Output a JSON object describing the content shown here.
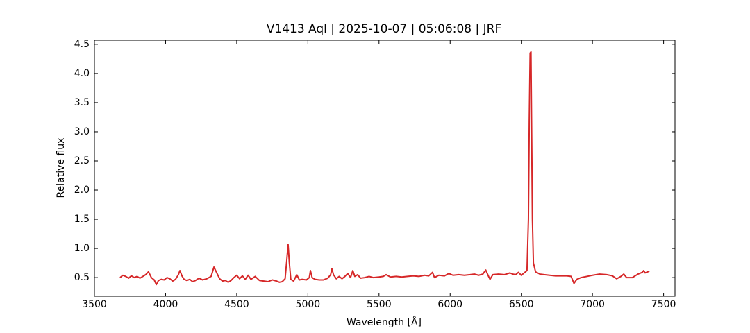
{
  "chart_data": {
    "type": "line",
    "title": "V1413 Aql | 2025-10-07 | 05:06:08 | JRF",
    "x_label": "Wavelength [Å]",
    "y_label": "Relative flux",
    "color": "#d62728",
    "x": [
      3680,
      3700,
      3720,
      3740,
      3760,
      3780,
      3800,
      3820,
      3840,
      3860,
      3880,
      3900,
      3920,
      3935,
      3950,
      3970,
      3990,
      4010,
      4030,
      4050,
      4070,
      4090,
      4101,
      4115,
      4130,
      4150,
      4170,
      4190,
      4210,
      4235,
      4260,
      4290,
      4320,
      4340,
      4360,
      4380,
      4400,
      4420,
      4440,
      4460,
      4480,
      4500,
      4520,
      4540,
      4560,
      4580,
      4600,
      4630,
      4660,
      4690,
      4720,
      4750,
      4780,
      4800,
      4820,
      4840,
      4852,
      4861,
      4870,
      4880,
      4900,
      4922,
      4940,
      4960,
      4990,
      5010,
      5018,
      5030,
      5050,
      5080,
      5110,
      5140,
      5160,
      5169,
      5180,
      5200,
      5220,
      5240,
      5260,
      5280,
      5300,
      5316,
      5330,
      5350,
      5370,
      5400,
      5430,
      5460,
      5500,
      5530,
      5550,
      5580,
      5620,
      5660,
      5700,
      5740,
      5780,
      5820,
      5850,
      5876,
      5890,
      5920,
      5960,
      5990,
      6020,
      6060,
      6100,
      6140,
      6170,
      6200,
      6230,
      6250,
      6270,
      6280,
      6300,
      6340,
      6380,
      6420,
      6440,
      6460,
      6480,
      6500,
      6520,
      6540,
      6550,
      6556,
      6562,
      6568,
      6572,
      6578,
      6585,
      6600,
      6630,
      6660,
      6700,
      6740,
      6780,
      6820,
      6850,
      6870,
      6890,
      6920,
      6960,
      7000,
      7050,
      7100,
      7140,
      7170,
      7200,
      7220,
      7240,
      7280,
      7320,
      7350,
      7360,
      7370,
      7400
    ],
    "values": [
      0.5,
      0.54,
      0.52,
      0.49,
      0.53,
      0.5,
      0.52,
      0.49,
      0.52,
      0.55,
      0.6,
      0.5,
      0.46,
      0.38,
      0.45,
      0.47,
      0.46,
      0.5,
      0.48,
      0.44,
      0.47,
      0.55,
      0.62,
      0.53,
      0.47,
      0.45,
      0.47,
      0.43,
      0.45,
      0.49,
      0.46,
      0.48,
      0.52,
      0.68,
      0.58,
      0.48,
      0.44,
      0.45,
      0.42,
      0.45,
      0.5,
      0.54,
      0.48,
      0.53,
      0.47,
      0.54,
      0.47,
      0.52,
      0.45,
      0.44,
      0.43,
      0.46,
      0.44,
      0.42,
      0.43,
      0.48,
      0.8,
      1.07,
      0.75,
      0.47,
      0.44,
      0.55,
      0.46,
      0.47,
      0.46,
      0.5,
      0.62,
      0.5,
      0.47,
      0.46,
      0.46,
      0.49,
      0.55,
      0.65,
      0.55,
      0.48,
      0.52,
      0.48,
      0.52,
      0.57,
      0.5,
      0.62,
      0.52,
      0.55,
      0.49,
      0.5,
      0.52,
      0.5,
      0.51,
      0.52,
      0.55,
      0.51,
      0.52,
      0.51,
      0.52,
      0.53,
      0.52,
      0.54,
      0.53,
      0.59,
      0.5,
      0.54,
      0.53,
      0.57,
      0.54,
      0.55,
      0.54,
      0.55,
      0.56,
      0.54,
      0.56,
      0.63,
      0.52,
      0.47,
      0.55,
      0.56,
      0.55,
      0.58,
      0.56,
      0.55,
      0.59,
      0.54,
      0.58,
      0.62,
      1.5,
      3.2,
      4.35,
      4.37,
      3.2,
      1.5,
      0.75,
      0.6,
      0.56,
      0.55,
      0.54,
      0.53,
      0.53,
      0.53,
      0.52,
      0.4,
      0.47,
      0.5,
      0.52,
      0.54,
      0.56,
      0.55,
      0.53,
      0.48,
      0.52,
      0.56,
      0.5,
      0.5,
      0.56,
      0.59,
      0.62,
      0.58,
      0.61
    ],
    "xlim": [
      3500,
      7580
    ],
    "ylim": [
      0.18,
      4.57
    ],
    "xticks": [
      3500,
      4000,
      4500,
      5000,
      5500,
      6000,
      6500,
      7000,
      7500
    ],
    "yticks": [
      0.5,
      {
        "value": 1,
        "label": "1.0"
      },
      1.5,
      {
        "value": 2,
        "label": "2.0"
      },
      2.5,
      {
        "value": 3,
        "label": "3.0"
      },
      3.5,
      {
        "value": 4,
        "label": "4.0"
      },
      4.5
    ],
    "grid": false
  }
}
